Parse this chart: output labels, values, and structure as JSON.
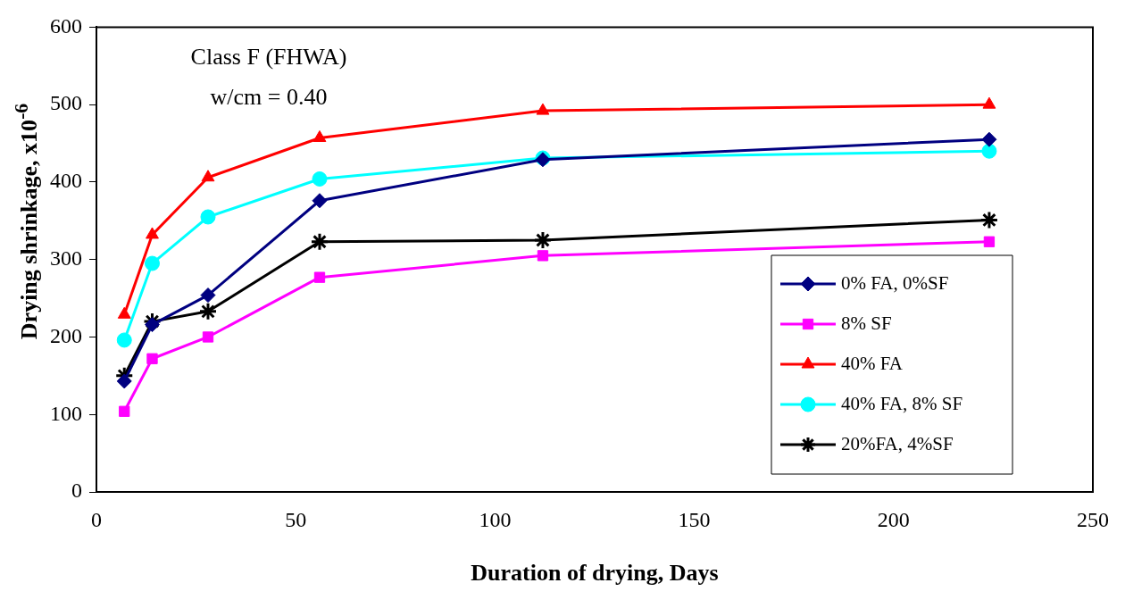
{
  "chart_data": {
    "type": "line",
    "xlabel": "Duration of drying, Days",
    "ylabel": "Drying shrinkage, x10$^{-6}$",
    "annotations": [
      "Class F (FHWA)",
      "w/cm = 0.40"
    ],
    "x": [
      7,
      14,
      28,
      56,
      112,
      224
    ],
    "xlim": [
      0,
      250
    ],
    "xticks": [
      0,
      50,
      100,
      150,
      200,
      250
    ],
    "ylim": [
      0,
      600
    ],
    "yticks": [
      0,
      100,
      200,
      300,
      400,
      500,
      600
    ],
    "grid": false,
    "legend": "bottom right",
    "line_style": "solid",
    "series": [
      {
        "name": "0% FA, 0%SF",
        "color": "#000080",
        "marker": "diamond",
        "values": [
          143,
          216,
          254,
          376,
          429,
          455
        ]
      },
      {
        "name": "8% SF",
        "color": "#ff00ff",
        "marker": "square",
        "values": [
          104,
          172,
          200,
          277,
          305,
          323
        ]
      },
      {
        "name": "40% FA",
        "color": "#ff0000",
        "marker": "triangle",
        "values": [
          229,
          332,
          406,
          457,
          492,
          500
        ]
      },
      {
        "name": "40% FA, 8% SF",
        "color": "#00ffff",
        "marker": "circle",
        "values": [
          196,
          295,
          355,
          404,
          431,
          440
        ]
      },
      {
        "name": "20%FA, 4%SF",
        "color": "#000000",
        "marker": "cross",
        "values": [
          150,
          220,
          233,
          323,
          325,
          351
        ]
      }
    ]
  }
}
